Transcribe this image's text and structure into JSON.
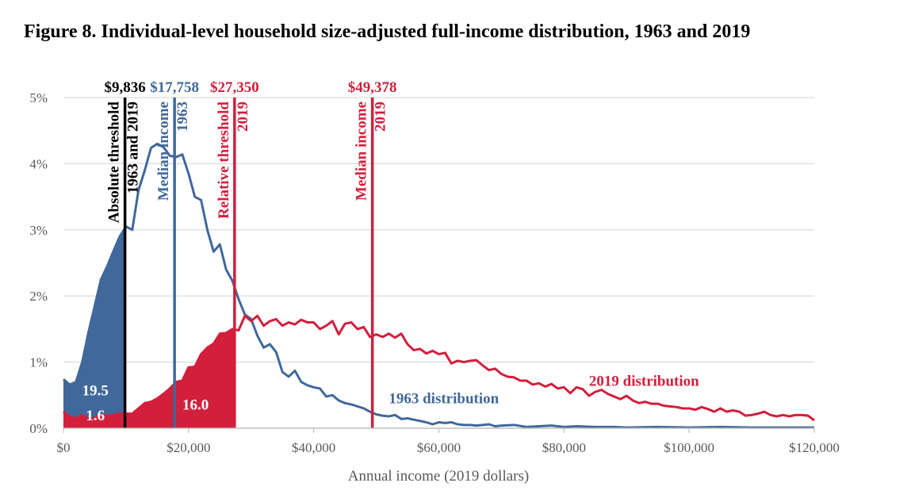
{
  "colors": {
    "blue": "#41689a",
    "red": "#d21f3c",
    "black": "#000000",
    "grid": "#d9d9d9",
    "text": "#595959"
  },
  "chart_data": {
    "type": "line",
    "title": "Figure 8. Individual-level household size-adjusted full-income distribution, 1963 and 2019",
    "xlabel": "Annual income (2019 dollars)",
    "ylabel": "",
    "xlim": [
      0,
      120000
    ],
    "ylim": [
      0,
      5
    ],
    "grid": true,
    "x_ticks": [
      {
        "value": 0,
        "label": "$0"
      },
      {
        "value": 20000,
        "label": "$20,000"
      },
      {
        "value": 40000,
        "label": "$40,000"
      },
      {
        "value": 60000,
        "label": "$60,000"
      },
      {
        "value": 80000,
        "label": "$80,000"
      },
      {
        "value": 100000,
        "label": "$100,000"
      },
      {
        "value": 120000,
        "label": "$120,000"
      }
    ],
    "y_ticks": [
      {
        "value": 0,
        "label": "0%"
      },
      {
        "value": 1,
        "label": "1%"
      },
      {
        "value": 2,
        "label": "2%"
      },
      {
        "value": 3,
        "label": "3%"
      },
      {
        "value": 4,
        "label": "4%"
      },
      {
        "value": 5,
        "label": "5%"
      }
    ],
    "series": [
      {
        "name": "1963 distribution",
        "color": "blue",
        "points": [
          [
            0,
            0.74
          ],
          [
            1000,
            0.66
          ],
          [
            2000,
            0.7
          ],
          [
            3000,
            1.0
          ],
          [
            4000,
            1.45
          ],
          [
            5000,
            1.85
          ],
          [
            6000,
            2.25
          ],
          [
            7000,
            2.45
          ],
          [
            8000,
            2.68
          ],
          [
            9000,
            2.9
          ],
          [
            10000,
            3.05
          ],
          [
            11000,
            3.0
          ],
          [
            12000,
            3.6
          ],
          [
            13000,
            3.9
          ],
          [
            14000,
            4.24
          ],
          [
            15000,
            4.3
          ],
          [
            16000,
            4.25
          ],
          [
            17000,
            4.12
          ],
          [
            18000,
            4.1
          ],
          [
            19000,
            4.14
          ],
          [
            20000,
            3.85
          ],
          [
            21000,
            3.5
          ],
          [
            22000,
            3.45
          ],
          [
            23000,
            3.0
          ],
          [
            24000,
            2.67
          ],
          [
            25000,
            2.78
          ],
          [
            26000,
            2.4
          ],
          [
            27000,
            2.23
          ],
          [
            28000,
            1.95
          ],
          [
            29000,
            1.72
          ],
          [
            30000,
            1.65
          ],
          [
            31000,
            1.4
          ],
          [
            32000,
            1.22
          ],
          [
            33000,
            1.27
          ],
          [
            34000,
            1.15
          ],
          [
            35000,
            0.85
          ],
          [
            36000,
            0.78
          ],
          [
            37000,
            0.87
          ],
          [
            38000,
            0.7
          ],
          [
            39000,
            0.65
          ],
          [
            40000,
            0.62
          ],
          [
            41000,
            0.6
          ],
          [
            42000,
            0.48
          ],
          [
            43000,
            0.5
          ],
          [
            44000,
            0.42
          ],
          [
            45000,
            0.38
          ],
          [
            46000,
            0.36
          ],
          [
            47000,
            0.33
          ],
          [
            48000,
            0.3
          ],
          [
            49000,
            0.25
          ],
          [
            50000,
            0.21
          ],
          [
            51000,
            0.19
          ],
          [
            52000,
            0.18
          ],
          [
            53000,
            0.2
          ],
          [
            54000,
            0.14
          ],
          [
            55000,
            0.15
          ],
          [
            56000,
            0.13
          ],
          [
            57000,
            0.11
          ],
          [
            58000,
            0.09
          ],
          [
            59000,
            0.06
          ],
          [
            60000,
            0.09
          ],
          [
            61000,
            0.08
          ],
          [
            62000,
            0.09
          ],
          [
            63000,
            0.06
          ],
          [
            64000,
            0.05
          ],
          [
            65000,
            0.05
          ],
          [
            66000,
            0.04
          ],
          [
            67000,
            0.05
          ],
          [
            68000,
            0.06
          ],
          [
            69000,
            0.03
          ],
          [
            70000,
            0.04
          ],
          [
            72000,
            0.05
          ],
          [
            74000,
            0.02
          ],
          [
            76000,
            0.03
          ],
          [
            78000,
            0.04
          ],
          [
            80000,
            0.02
          ],
          [
            82000,
            0.03
          ],
          [
            85000,
            0.02
          ],
          [
            88000,
            0.02
          ],
          [
            90000,
            0.01
          ],
          [
            95000,
            0.02
          ],
          [
            100000,
            0.01
          ],
          [
            105000,
            0.02
          ],
          [
            110000,
            0.01
          ],
          [
            115000,
            0.01
          ],
          [
            120000,
            0.01
          ]
        ]
      },
      {
        "name": "2019 distribution",
        "color": "red",
        "points": [
          [
            0,
            0.25
          ],
          [
            1000,
            0.17
          ],
          [
            2000,
            0.15
          ],
          [
            3000,
            0.2
          ],
          [
            4000,
            0.14
          ],
          [
            5000,
            0.16
          ],
          [
            6000,
            0.2
          ],
          [
            7000,
            0.19
          ],
          [
            8000,
            0.2
          ],
          [
            9000,
            0.22
          ],
          [
            10000,
            0.22
          ],
          [
            11000,
            0.22
          ],
          [
            12000,
            0.3
          ],
          [
            13000,
            0.38
          ],
          [
            14000,
            0.4
          ],
          [
            15000,
            0.45
          ],
          [
            16000,
            0.52
          ],
          [
            17000,
            0.6
          ],
          [
            18000,
            0.7
          ],
          [
            19000,
            0.72
          ],
          [
            20000,
            0.92
          ],
          [
            21000,
            0.93
          ],
          [
            22000,
            1.12
          ],
          [
            23000,
            1.22
          ],
          [
            24000,
            1.28
          ],
          [
            25000,
            1.43
          ],
          [
            26000,
            1.44
          ],
          [
            27000,
            1.5
          ],
          [
            28000,
            1.48
          ],
          [
            29000,
            1.7
          ],
          [
            30000,
            1.62
          ],
          [
            31000,
            1.7
          ],
          [
            32000,
            1.55
          ],
          [
            33000,
            1.62
          ],
          [
            34000,
            1.65
          ],
          [
            35000,
            1.55
          ],
          [
            36000,
            1.6
          ],
          [
            37000,
            1.57
          ],
          [
            38000,
            1.64
          ],
          [
            39000,
            1.6
          ],
          [
            40000,
            1.6
          ],
          [
            41000,
            1.5
          ],
          [
            42000,
            1.55
          ],
          [
            43000,
            1.62
          ],
          [
            44000,
            1.42
          ],
          [
            45000,
            1.58
          ],
          [
            46000,
            1.6
          ],
          [
            47000,
            1.5
          ],
          [
            48000,
            1.53
          ],
          [
            49000,
            1.38
          ],
          [
            50000,
            1.42
          ],
          [
            51000,
            1.38
          ],
          [
            52000,
            1.43
          ],
          [
            53000,
            1.37
          ],
          [
            54000,
            1.43
          ],
          [
            55000,
            1.27
          ],
          [
            56000,
            1.18
          ],
          [
            57000,
            1.2
          ],
          [
            58000,
            1.13
          ],
          [
            59000,
            1.17
          ],
          [
            60000,
            1.12
          ],
          [
            61000,
            1.14
          ],
          [
            62000,
            0.98
          ],
          [
            63000,
            1.02
          ],
          [
            64000,
            1.0
          ],
          [
            65000,
            1.02
          ],
          [
            66000,
            1.03
          ],
          [
            67000,
            0.95
          ],
          [
            68000,
            0.88
          ],
          [
            69000,
            0.9
          ],
          [
            70000,
            0.82
          ],
          [
            71000,
            0.78
          ],
          [
            72000,
            0.77
          ],
          [
            73000,
            0.72
          ],
          [
            74000,
            0.72
          ],
          [
            75000,
            0.66
          ],
          [
            76000,
            0.68
          ],
          [
            77000,
            0.63
          ],
          [
            78000,
            0.67
          ],
          [
            79000,
            0.6
          ],
          [
            80000,
            0.62
          ],
          [
            81000,
            0.53
          ],
          [
            82000,
            0.62
          ],
          [
            83000,
            0.59
          ],
          [
            84000,
            0.49
          ],
          [
            85000,
            0.55
          ],
          [
            86000,
            0.58
          ],
          [
            87000,
            0.52
          ],
          [
            88000,
            0.48
          ],
          [
            89000,
            0.44
          ],
          [
            90000,
            0.49
          ],
          [
            91000,
            0.42
          ],
          [
            92000,
            0.38
          ],
          [
            93000,
            0.4
          ],
          [
            94000,
            0.37
          ],
          [
            95000,
            0.37
          ],
          [
            96000,
            0.34
          ],
          [
            97000,
            0.33
          ],
          [
            98000,
            0.32
          ],
          [
            99000,
            0.3
          ],
          [
            100000,
            0.3
          ],
          [
            101000,
            0.28
          ],
          [
            102000,
            0.32
          ],
          [
            103000,
            0.29
          ],
          [
            104000,
            0.25
          ],
          [
            105000,
            0.3
          ],
          [
            106000,
            0.25
          ],
          [
            107000,
            0.27
          ],
          [
            108000,
            0.25
          ],
          [
            109000,
            0.19
          ],
          [
            110000,
            0.2
          ],
          [
            111000,
            0.22
          ],
          [
            112000,
            0.25
          ],
          [
            113000,
            0.2
          ],
          [
            114000,
            0.18
          ],
          [
            115000,
            0.2
          ],
          [
            116000,
            0.18
          ],
          [
            117000,
            0.2
          ],
          [
            118000,
            0.2
          ],
          [
            119000,
            0.19
          ],
          [
            120000,
            0.12
          ]
        ]
      }
    ],
    "shaded_areas": [
      {
        "series": "1963 distribution",
        "from": 0,
        "to": 9836,
        "color": "blue",
        "label": "19.5",
        "label_at": [
          3000,
          0.5
        ]
      },
      {
        "series": "2019 distribution",
        "from": 0,
        "to": 27350,
        "color": "red",
        "label": "16.0",
        "label_at": [
          19000,
          0.28
        ]
      },
      {
        "series": "2019 distribution",
        "from": 0,
        "to": 9836,
        "color": "red",
        "label": "1.6",
        "label_at": [
          3600,
          0.12
        ]
      }
    ],
    "vertical_lines": [
      {
        "x": 9836,
        "value_label": "$9,836",
        "color": "black",
        "text_lines": [
          "Absolute threshold",
          "1963 and 2019"
        ]
      },
      {
        "x": 17758,
        "value_label": "$17,758",
        "color": "blue",
        "text_lines": [
          "Median income",
          "1963"
        ]
      },
      {
        "x": 27350,
        "value_label": "$27,350",
        "color": "red",
        "text_lines": [
          "Relative threshold",
          "2019"
        ]
      },
      {
        "x": 49378,
        "value_label": "$49,378",
        "color": "red",
        "text_lines": [
          "Median income",
          "2019"
        ]
      }
    ],
    "series_labels": [
      {
        "text": "1963 distribution",
        "color": "blue",
        "at": [
          52000,
          0.38
        ]
      },
      {
        "text": "2019 distribution",
        "color": "red",
        "at": [
          84000,
          0.64
        ]
      }
    ]
  }
}
